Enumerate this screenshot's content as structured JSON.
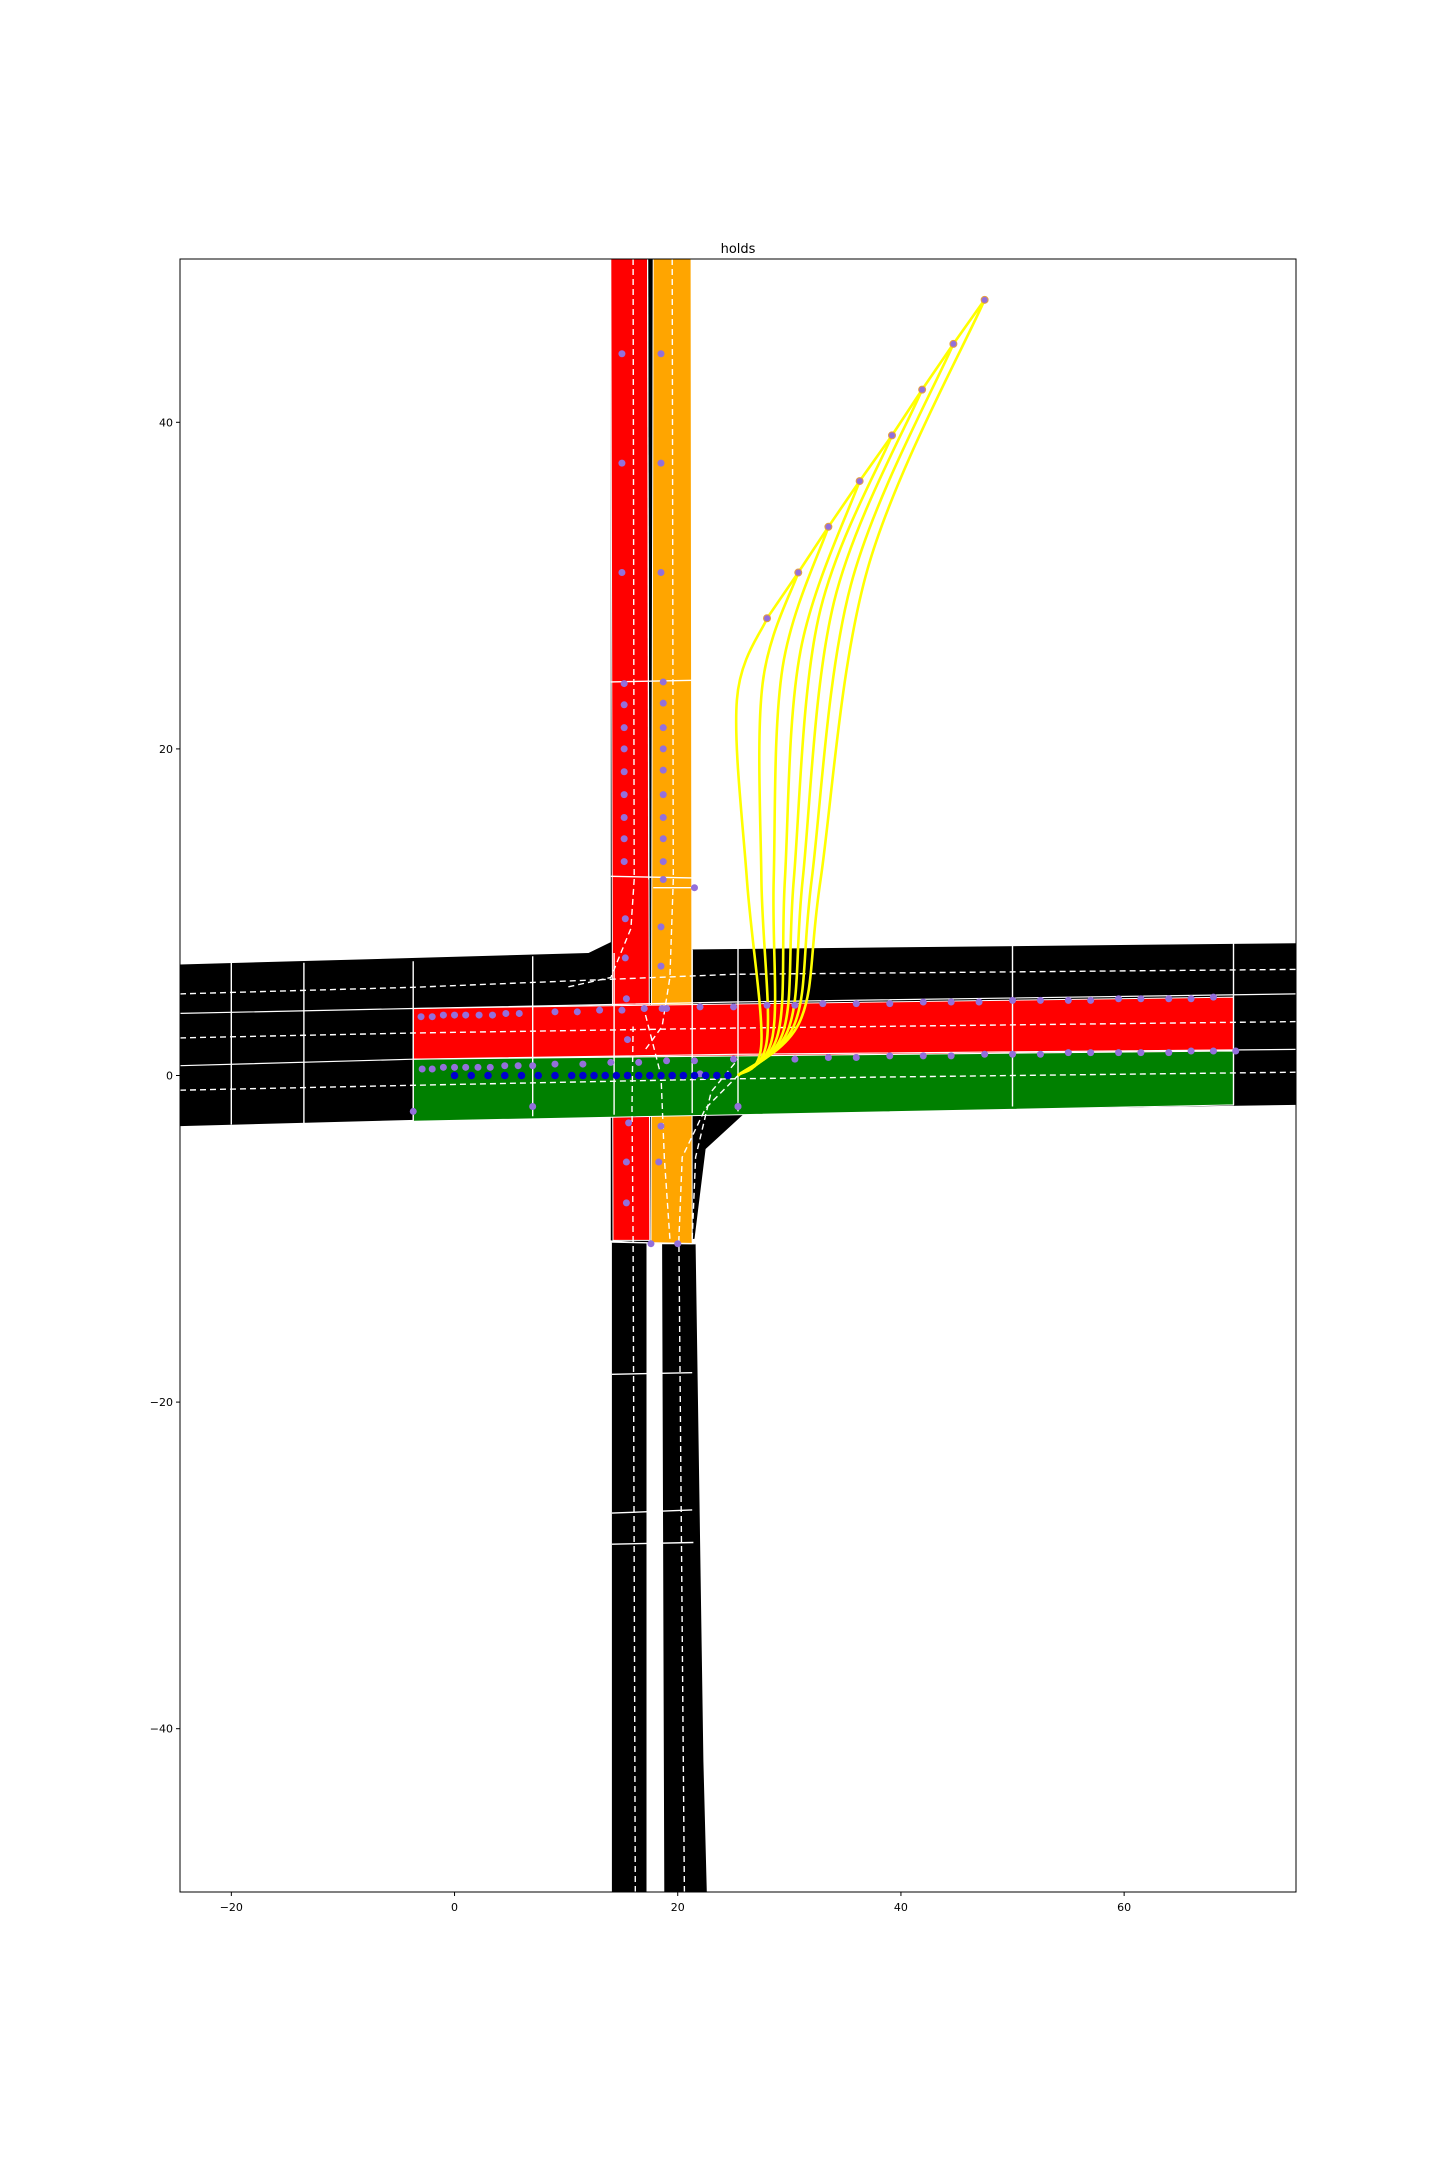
{
  "chart_data": {
    "type": "scatter",
    "title": "holds",
    "xlabel": "",
    "ylabel": "",
    "xlim": [
      -24.6,
      75.4
    ],
    "ylim": [
      -50,
      50
    ],
    "x_ticks": [
      -20,
      0,
      20,
      40,
      60
    ],
    "y_ticks": [
      -40,
      -20,
      0,
      20,
      40
    ],
    "x_tick_labels": [
      "−20",
      "0",
      "20",
      "40",
      "60"
    ],
    "y_tick_labels": [
      "−40",
      "−20",
      "0",
      "20",
      "40"
    ],
    "grid": false,
    "colors": {
      "road": "#000000",
      "lane_red": "#ff0000",
      "lane_orange": "#ffa500",
      "lane_green": "#008000",
      "trajectory": "#ffff00",
      "marker": "#9370db",
      "ego_path": "#0000cd",
      "lane_line": "#ffffff"
    },
    "roads": [
      {
        "name": "horizontal-road",
        "color": "road",
        "polygon": [
          [
            -24.6,
            6.8
          ],
          [
            12,
            7.5
          ],
          [
            15,
            8.5
          ],
          [
            18.5,
            7.7
          ],
          [
            75.4,
            8.1
          ],
          [
            75.4,
            -1.8
          ],
          [
            26,
            -2.3
          ],
          [
            22.5,
            -4.5
          ],
          [
            21.5,
            -10
          ],
          [
            19,
            -10.3
          ],
          [
            14,
            -10.1
          ],
          [
            14,
            -2.4
          ],
          [
            -24.6,
            -3.1
          ]
        ]
      },
      {
        "name": "vertical-road-north",
        "color": "road",
        "polygon": [
          [
            14,
            50
          ],
          [
            21.1,
            50
          ],
          [
            21.1,
            7
          ],
          [
            14,
            7
          ]
        ]
      },
      {
        "name": "vertical-road-south-left",
        "color": "road",
        "polygon": [
          [
            14.1,
            -10.2
          ],
          [
            17.2,
            -10.2
          ],
          [
            17.2,
            -50
          ],
          [
            14.1,
            -50
          ]
        ]
      },
      {
        "name": "vertical-road-south-right",
        "color": "road",
        "polygon": [
          [
            18.6,
            -10.3
          ],
          [
            21.6,
            -10.3
          ],
          [
            22.3,
            -42
          ],
          [
            22.6,
            -50
          ],
          [
            18.8,
            -50
          ]
        ]
      }
    ],
    "lanes": [
      {
        "name": "lane-red-vertical",
        "color": "lane_red",
        "polygon": [
          [
            14,
            50
          ],
          [
            17.3,
            50
          ],
          [
            17.5,
            -10.1
          ],
          [
            14.2,
            -10.1
          ]
        ]
      },
      {
        "name": "lane-orange-vertical",
        "color": "lane_orange",
        "polygon": [
          [
            17.8,
            50
          ],
          [
            21.2,
            50
          ],
          [
            21.3,
            -10.3
          ],
          [
            17.6,
            -10.3
          ]
        ]
      },
      {
        "name": "lane-red-horizontal",
        "color": "lane_red",
        "polygon": [
          [
            -3.7,
            4.1
          ],
          [
            69.8,
            4.8
          ],
          [
            69.8,
            1.5
          ],
          [
            -3.7,
            1.0
          ]
        ]
      },
      {
        "name": "lane-green-horizontal",
        "color": "lane_green",
        "polygon": [
          [
            -3.7,
            1.0
          ],
          [
            69.8,
            1.5
          ],
          [
            69.8,
            -1.8
          ],
          [
            -3.7,
            -2.8
          ]
        ]
      }
    ],
    "trajectories": [
      {
        "name": "trajectory-1",
        "points": [
          [
            25.4,
            0
          ],
          [
            27.5,
            2
          ],
          [
            26.2,
            12
          ],
          [
            25.3,
            23
          ],
          [
            28,
            28
          ]
        ]
      },
      {
        "name": "trajectory-2",
        "points": [
          [
            25.4,
            0
          ],
          [
            28,
            2.2
          ],
          [
            27.5,
            12
          ],
          [
            27.6,
            24
          ],
          [
            30.8,
            30.8
          ]
        ]
      },
      {
        "name": "trajectory-3",
        "points": [
          [
            25.4,
            0
          ],
          [
            28.5,
            2.4
          ],
          [
            28.6,
            12
          ],
          [
            29.4,
            25
          ],
          [
            33.5,
            33.6
          ]
        ]
      },
      {
        "name": "trajectory-4",
        "points": [
          [
            25.4,
            0
          ],
          [
            29,
            2.6
          ],
          [
            29.6,
            12
          ],
          [
            31,
            26
          ],
          [
            36.3,
            36.4
          ]
        ]
      },
      {
        "name": "trajectory-5",
        "points": [
          [
            25.4,
            0
          ],
          [
            29.5,
            2.8
          ],
          [
            30.4,
            12
          ],
          [
            32.6,
            28
          ],
          [
            39.2,
            39.2
          ]
        ]
      },
      {
        "name": "trajectory-6",
        "points": [
          [
            25.4,
            0
          ],
          [
            30,
            3
          ],
          [
            31.2,
            12
          ],
          [
            34,
            29
          ],
          [
            41.9,
            42
          ]
        ]
      },
      {
        "name": "trajectory-7",
        "points": [
          [
            25.4,
            0
          ],
          [
            30.5,
            3.2
          ],
          [
            32,
            12
          ],
          [
            35.5,
            30
          ],
          [
            44.7,
            44.8
          ]
        ]
      },
      {
        "name": "trajectory-8",
        "points": [
          [
            25.4,
            0
          ],
          [
            31,
            3.4
          ],
          [
            32.8,
            12
          ],
          [
            37,
            31
          ],
          [
            47.5,
            47.5
          ]
        ]
      }
    ],
    "trajectory_endpoints": [
      [
        28,
        28
      ],
      [
        30.8,
        30.8
      ],
      [
        33.5,
        33.6
      ],
      [
        36.3,
        36.4
      ],
      [
        39.2,
        39.2
      ],
      [
        41.9,
        42
      ],
      [
        44.7,
        44.8
      ],
      [
        47.5,
        47.5
      ]
    ],
    "waypoints": [
      [
        15,
        44.2
      ],
      [
        18.5,
        44.2
      ],
      [
        15,
        37.5
      ],
      [
        18.5,
        37.5
      ],
      [
        15,
        30.8
      ],
      [
        18.5,
        30.8
      ],
      [
        15.2,
        24
      ],
      [
        18.7,
        24.1
      ],
      [
        15.2,
        22.7
      ],
      [
        18.7,
        22.8
      ],
      [
        15.2,
        21.3
      ],
      [
        18.7,
        21.3
      ],
      [
        15.2,
        20
      ],
      [
        18.7,
        20
      ],
      [
        15.2,
        18.6
      ],
      [
        18.7,
        18.7
      ],
      [
        15.2,
        17.2
      ],
      [
        18.7,
        17.2
      ],
      [
        15.2,
        15.8
      ],
      [
        18.7,
        15.8
      ],
      [
        15.2,
        14.5
      ],
      [
        18.7,
        14.5
      ],
      [
        15.2,
        13.1
      ],
      [
        18.7,
        13.1
      ],
      [
        18.7,
        12
      ],
      [
        15.3,
        9.6
      ],
      [
        18.5,
        9.1
      ],
      [
        15.3,
        7.2
      ],
      [
        18.5,
        6.7
      ],
      [
        15.4,
        4.7
      ],
      [
        15.5,
        2.2
      ],
      [
        18.6,
        4.1
      ],
      [
        15.6,
        -2.9
      ],
      [
        18.5,
        -3.1
      ],
      [
        15.4,
        -5.3
      ],
      [
        18.3,
        -5.3
      ],
      [
        15.4,
        -7.8
      ],
      [
        17.6,
        -10.3
      ],
      [
        20,
        -10.3
      ],
      [
        21.5,
        11.5
      ],
      [
        22,
        0.1
      ],
      [
        25.4,
        -1.9
      ],
      [
        -3,
        3.6
      ],
      [
        -2,
        3.6
      ],
      [
        -1,
        3.7
      ],
      [
        0,
        3.7
      ],
      [
        1,
        3.7
      ],
      [
        2.2,
        3.7
      ],
      [
        3.4,
        3.7
      ],
      [
        4.6,
        3.8
      ],
      [
        5.8,
        3.8
      ],
      [
        9,
        3.9
      ],
      [
        11,
        3.9
      ],
      [
        13,
        4
      ],
      [
        15,
        4
      ],
      [
        17,
        4.1
      ],
      [
        19,
        4.1
      ],
      [
        22,
        4.2
      ],
      [
        25,
        4.2
      ],
      [
        28,
        4.3
      ],
      [
        30.5,
        4.3
      ],
      [
        33,
        4.4
      ],
      [
        36,
        4.4
      ],
      [
        39,
        4.4
      ],
      [
        42,
        4.5
      ],
      [
        44.5,
        4.5
      ],
      [
        47,
        4.5
      ],
      [
        50,
        4.6
      ],
      [
        52.5,
        4.6
      ],
      [
        55,
        4.6
      ],
      [
        57,
        4.6
      ],
      [
        59.5,
        4.7
      ],
      [
        61.5,
        4.7
      ],
      [
        64,
        4.7
      ],
      [
        66,
        4.7
      ],
      [
        68,
        4.8
      ],
      [
        -2.9,
        0.4
      ],
      [
        -2,
        0.4
      ],
      [
        -1,
        0.5
      ],
      [
        0,
        0.5
      ],
      [
        1,
        0.5
      ],
      [
        2.1,
        0.5
      ],
      [
        3.2,
        0.5
      ],
      [
        4.5,
        0.6
      ],
      [
        5.7,
        0.6
      ],
      [
        7,
        0.6
      ],
      [
        9,
        0.7
      ],
      [
        11.5,
        0.7
      ],
      [
        14,
        0.8
      ],
      [
        16.5,
        0.8
      ],
      [
        19,
        0.9
      ],
      [
        21.5,
        0.9
      ],
      [
        25,
        1
      ],
      [
        30.5,
        1
      ],
      [
        33.5,
        1.1
      ],
      [
        36,
        1.1
      ],
      [
        39,
        1.2
      ],
      [
        42,
        1.2
      ],
      [
        44.5,
        1.2
      ],
      [
        47.5,
        1.3
      ],
      [
        50,
        1.3
      ],
      [
        52.5,
        1.3
      ],
      [
        55,
        1.4
      ],
      [
        57,
        1.4
      ],
      [
        59.5,
        1.4
      ],
      [
        61.5,
        1.4
      ],
      [
        64,
        1.4
      ],
      [
        66,
        1.5
      ],
      [
        68,
        1.5
      ],
      [
        70,
        1.5
      ],
      [
        -3.7,
        -2.2
      ],
      [
        7,
        -1.9
      ],
      [
        25.4,
        -1.9
      ]
    ],
    "ego_path": [
      [
        0,
        0
      ],
      [
        1.5,
        0
      ],
      [
        3,
        0
      ],
      [
        4.5,
        0
      ],
      [
        6,
        0
      ],
      [
        7.5,
        0
      ],
      [
        9,
        0
      ],
      [
        10.5,
        0
      ],
      [
        11.5,
        0
      ],
      [
        12.5,
        0
      ],
      [
        13.5,
        0
      ],
      [
        14.5,
        0
      ],
      [
        15.5,
        0
      ],
      [
        16.5,
        0
      ],
      [
        17.5,
        0
      ],
      [
        18.5,
        0
      ],
      [
        19.5,
        0
      ],
      [
        20.5,
        0
      ],
      [
        21.5,
        0
      ],
      [
        22.5,
        0
      ],
      [
        23.5,
        0
      ],
      [
        24.5,
        0
      ]
    ],
    "stop_lines": [
      [
        [
          -20,
          6.9
        ],
        [
          -20,
          -3
        ]
      ],
      [
        [
          -13.5,
          6.9
        ],
        [
          -13.5,
          -3
        ]
      ],
      [
        [
          -3.7,
          7
        ],
        [
          -3.7,
          -2.8
        ]
      ],
      [
        [
          7,
          7.3
        ],
        [
          7,
          -2.5
        ]
      ],
      [
        [
          14.3,
          7.5
        ],
        [
          14.3,
          -2.4
        ]
      ],
      [
        [
          21.3,
          7.7
        ],
        [
          21.3,
          -2.3
        ]
      ],
      [
        [
          25.4,
          7.8
        ],
        [
          25.4,
          -2.2
        ]
      ],
      [
        [
          50,
          8
        ],
        [
          50,
          -1.9
        ]
      ],
      [
        [
          69.8,
          8.1
        ],
        [
          69.8,
          -1.8
        ]
      ],
      [
        [
          14,
          24.1
        ],
        [
          21.4,
          24.2
        ]
      ],
      [
        [
          14,
          12.2
        ],
        [
          21.3,
          12.1
        ]
      ],
      [
        [
          17.8,
          11.5
        ],
        [
          21.5,
          11.5
        ]
      ],
      [
        [
          14.1,
          -10.2
        ],
        [
          21.6,
          -10.3
        ]
      ],
      [
        [
          14.1,
          -18.3
        ],
        [
          21.3,
          -18.2
        ]
      ],
      [
        [
          14.1,
          -26.8
        ],
        [
          21.3,
          -26.6
        ]
      ],
      [
        [
          14.1,
          -28.7
        ],
        [
          21.4,
          -28.6
        ]
      ]
    ],
    "solid_lines": [
      [
        [
          -24.6,
          3.8
        ],
        [
          -3.7,
          4.1
        ],
        [
          25,
          4.5
        ],
        [
          75.4,
          5
        ]
      ],
      [
        [
          -24.6,
          0.6
        ],
        [
          -3.7,
          1
        ],
        [
          25,
          1.3
        ],
        [
          75.4,
          1.6
        ]
      ],
      [
        [
          17.3,
          50
        ],
        [
          17.4,
          12
        ]
      ],
      [
        [
          17.6,
          -10.3
        ],
        [
          17.8,
          -30
        ],
        [
          17.9,
          -50
        ]
      ]
    ],
    "dashed_lines": [
      [
        [
          -24.6,
          5
        ],
        [
          -3.7,
          5.4
        ],
        [
          25,
          6.2
        ],
        [
          75.4,
          6.5
        ]
      ],
      [
        [
          -24.6,
          2.3
        ],
        [
          -3.7,
          2.6
        ],
        [
          25,
          2.9
        ],
        [
          75.4,
          3.3
        ]
      ],
      [
        [
          -24.6,
          -0.9
        ],
        [
          -3.7,
          -0.6
        ],
        [
          25,
          -0.2
        ],
        [
          75.4,
          0.2
        ]
      ],
      [
        [
          16,
          50
        ],
        [
          16.1,
          12
        ],
        [
          15.8,
          9
        ],
        [
          14,
          6
        ],
        [
          10,
          5.4
        ]
      ],
      [
        [
          19.5,
          50
        ],
        [
          19.6,
          12
        ],
        [
          19.3,
          6
        ],
        [
          18.6,
          3
        ],
        [
          17,
          1.5
        ]
      ],
      [
        [
          16.2,
          -50
        ],
        [
          16,
          -10
        ],
        [
          15.9,
          -2
        ],
        [
          16,
          3
        ]
      ],
      [
        [
          20.6,
          -50
        ],
        [
          20.1,
          -10
        ],
        [
          20.4,
          -5
        ],
        [
          22.5,
          -2
        ],
        [
          25.4,
          0
        ]
      ],
      [
        [
          19.3,
          -10
        ],
        [
          18.8,
          -5
        ],
        [
          18.5,
          0
        ],
        [
          17,
          4
        ]
      ],
      [
        [
          21.3,
          -10
        ],
        [
          21.6,
          -5
        ],
        [
          23,
          -1
        ],
        [
          25.4,
          1
        ]
      ]
    ]
  }
}
